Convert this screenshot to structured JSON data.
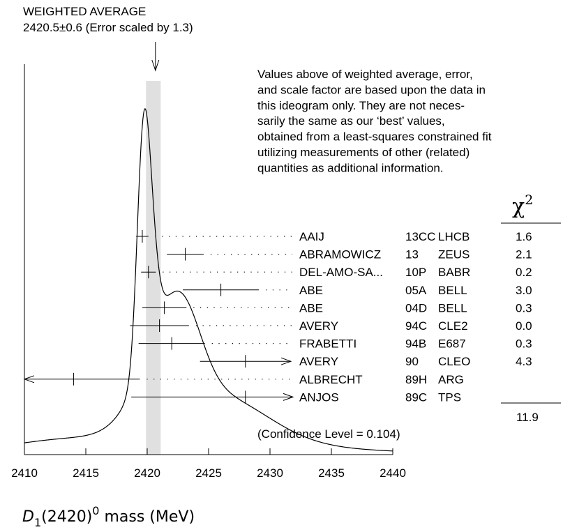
{
  "chart_data": {
    "type": "ideogram",
    "title": "WEIGHTED AVERAGE",
    "subtitle": "2420.5±0.6 (Error scaled by 1.3)",
    "weighted_average": {
      "value": 2420.5,
      "error": 0.6,
      "scale_factor": 1.3
    },
    "xlabel": {
      "symbol": "D",
      "sub": "1",
      "particle": "(2420)",
      "sup": "0",
      "rest": " mass (MeV)"
    },
    "xlim": [
      2410,
      2440
    ],
    "x_ticks": [
      "2410",
      "2415",
      "2420",
      "2425",
      "2430",
      "2435",
      "2440"
    ],
    "chi2_header": "χ",
    "chi2_header_sup": "2",
    "note": [
      "Values above of weighted average, error,",
      "and scale factor are based upon the data in",
      "this ideogram only.  They are not neces-",
      "sarily the same as our ‘best’ values,",
      "obtained from a least-squares constrained fit",
      "utilizing measurements of other (related)",
      "quantities as additional information."
    ],
    "measurements": [
      {
        "author": "AAIJ",
        "ref": "13CC",
        "exp": "LHCB",
        "chi2": "1.6",
        "value": 2419.6,
        "err": 0.5,
        "arrow": "none"
      },
      {
        "author": "ABRAMOWICZ",
        "ref": "13",
        "exp": "ZEUS",
        "chi2": "2.1",
        "value": 2423.1,
        "err": 1.5,
        "arrow": "none"
      },
      {
        "author": "DEL-AMO-SA...",
        "ref": "10P",
        "exp": "BABR",
        "chi2": "0.2",
        "value": 2420.1,
        "err": 0.6,
        "arrow": "none"
      },
      {
        "author": "ABE",
        "ref": "05A",
        "exp": "BELL",
        "chi2": "3.0",
        "value": 2426.0,
        "err": 3.1,
        "arrow": "none"
      },
      {
        "author": "ABE",
        "ref": "04D",
        "exp": "BELL",
        "chi2": "0.3",
        "value": 2421.4,
        "err": 1.8,
        "arrow": "none"
      },
      {
        "author": "AVERY",
        "ref": "94C",
        "exp": "CLE2",
        "chi2": "0.0",
        "value": 2421.0,
        "err": 2.4,
        "arrow": "none"
      },
      {
        "author": "FRABETTI",
        "ref": "94B",
        "exp": "E687",
        "chi2": "0.3",
        "value": 2422.0,
        "err": 2.7,
        "arrow": "none"
      },
      {
        "author": "AVERY",
        "ref": "90",
        "exp": "CLEO",
        "chi2": "4.3",
        "value": 2428.0,
        "err": 3.7,
        "arrow": "right"
      },
      {
        "author": "ALBRECHT",
        "ref": "89H",
        "exp": "ARG",
        "chi2": "",
        "value": 2414.0,
        "err": 5.4,
        "arrow": "left"
      },
      {
        "author": "ANJOS",
        "ref": "89C",
        "exp": "TPS",
        "chi2": "",
        "value": 2428.0,
        "err": 9.3,
        "arrow": "right"
      }
    ],
    "chi2_total": "11.9",
    "confidence_level": "(Confidence Level = 0.104)",
    "colors": {
      "band": "#e0e0e0",
      "ink": "#000000"
    }
  }
}
